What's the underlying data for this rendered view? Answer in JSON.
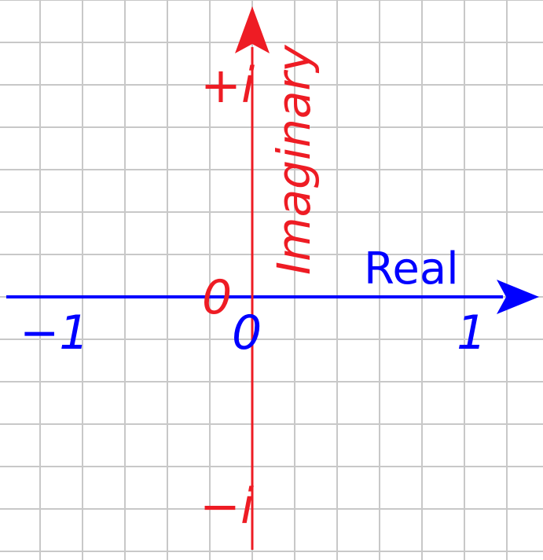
{
  "axes": {
    "real": {
      "label": "Real",
      "color": "#0000ff",
      "ticks": [
        {
          "value": -1,
          "label": "−1"
        },
        {
          "value": 0,
          "label": "0"
        },
        {
          "value": 1,
          "label": "1"
        }
      ]
    },
    "imaginary": {
      "label": "Imaginary",
      "color": "#ee1c24",
      "ticks": [
        {
          "value": 1,
          "label": "+i"
        },
        {
          "value": 0,
          "label": "0"
        },
        {
          "value": -1,
          "label": "−i"
        }
      ]
    }
  },
  "grid": {
    "visible": true,
    "color": "#c8c8c8",
    "divisions_per_unit": 5
  }
}
